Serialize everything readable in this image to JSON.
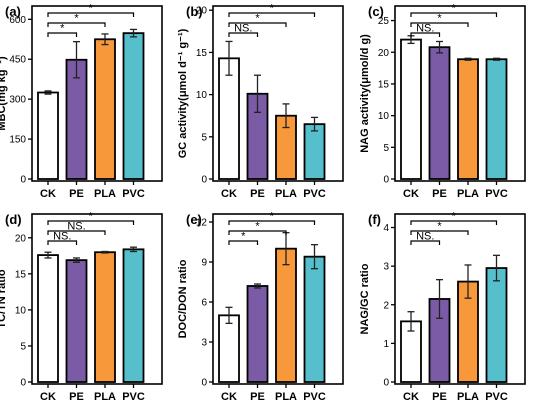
{
  "colors": {
    "CK": "#ffffff",
    "PE": "#7b5aa6",
    "PLA": "#f7983a",
    "PVC": "#55bfcc",
    "outline": "#000000"
  },
  "chart_data": [
    {
      "type": "bar",
      "panel": "(a)",
      "ylabel": "MBC(mg kg⁻¹)",
      "categories": [
        "CK",
        "PE",
        "PLA",
        "PVC"
      ],
      "values": [
        325,
        448,
        525,
        548
      ],
      "errors": [
        6,
        68,
        20,
        14
      ],
      "ylim": [
        0,
        650
      ],
      "yticks": [
        0,
        150,
        300,
        450,
        600
      ],
      "grid": false,
      "significance": [
        {
          "from": "CK",
          "to": "PE",
          "label": "*"
        },
        {
          "from": "CK",
          "to": "PLA",
          "label": "*"
        },
        {
          "from": "CK",
          "to": "PVC",
          "label": "*"
        }
      ]
    },
    {
      "type": "bar",
      "panel": "(b)",
      "ylabel": "GC activity(μmol d⁻¹ g⁻¹)",
      "categories": [
        "CK",
        "PE",
        "PLA",
        "PVC"
      ],
      "values": [
        14.3,
        10.1,
        7.5,
        6.5
      ],
      "errors": [
        2.0,
        2.2,
        1.4,
        0.8
      ],
      "ylim": [
        0,
        20.5
      ],
      "yticks": [
        0,
        5,
        10,
        15,
        20
      ],
      "grid": false,
      "significance": [
        {
          "from": "CK",
          "to": "PE",
          "label": "NS."
        },
        {
          "from": "CK",
          "to": "PLA",
          "label": "*"
        },
        {
          "from": "CK",
          "to": "PVC",
          "label": "*"
        }
      ]
    },
    {
      "type": "bar",
      "panel": "(c)",
      "ylabel": "NAG activity(μmol/d g)",
      "categories": [
        "CK",
        "PE",
        "PLA",
        "PVC"
      ],
      "values": [
        22.0,
        20.8,
        18.9,
        18.9
      ],
      "errors": [
        0.6,
        0.9,
        0.15,
        0.15
      ],
      "ylim": [
        0,
        27.3
      ],
      "yticks": [
        0,
        5,
        10,
        15,
        20,
        25
      ],
      "grid": false,
      "significance": [
        {
          "from": "CK",
          "to": "PE",
          "label": "NS."
        },
        {
          "from": "CK",
          "to": "PLA",
          "label": "*"
        },
        {
          "from": "CK",
          "to": "PVC",
          "label": "*"
        }
      ]
    },
    {
      "type": "bar",
      "panel": "(d)",
      "ylabel": "TC/TN ratio",
      "categories": [
        "CK",
        "PE",
        "PLA",
        "PVC"
      ],
      "values": [
        17.6,
        16.9,
        18.0,
        18.4
      ],
      "errors": [
        0.4,
        0.3,
        0.1,
        0.3
      ],
      "ylim": [
        0,
        23.3
      ],
      "yticks": [
        0,
        5,
        10,
        15,
        20
      ],
      "grid": false,
      "significance": [
        {
          "from": "CK",
          "to": "PE",
          "label": "NS."
        },
        {
          "from": "CK",
          "to": "PLA",
          "label": "NS."
        },
        {
          "from": "CK",
          "to": "PVC",
          "label": "*"
        }
      ]
    },
    {
      "type": "bar",
      "panel": "(e)",
      "ylabel": "DOC/DON ratio",
      "categories": [
        "CK",
        "PE",
        "PLA",
        "PVC"
      ],
      "values": [
        5.0,
        7.2,
        10.0,
        9.4
      ],
      "errors": [
        0.6,
        0.15,
        1.2,
        0.9
      ],
      "ylim": [
        0,
        12.6
      ],
      "yticks": [
        0,
        3,
        6,
        9,
        12
      ],
      "grid": false,
      "significance": [
        {
          "from": "CK",
          "to": "PE",
          "label": "*"
        },
        {
          "from": "CK",
          "to": "PLA",
          "label": "*"
        },
        {
          "from": "CK",
          "to": "PVC",
          "label": "*"
        }
      ]
    },
    {
      "type": "bar",
      "panel": "(f)",
      "ylabel": "NAG/GC ratio",
      "categories": [
        "CK",
        "PE",
        "PLA",
        "PVC"
      ],
      "values": [
        1.57,
        2.15,
        2.6,
        2.95
      ],
      "errors": [
        0.25,
        0.5,
        0.43,
        0.33
      ],
      "ylim": [
        0,
        4.35
      ],
      "yticks": [
        0,
        1,
        2,
        3,
        4
      ],
      "grid": false,
      "significance": [
        {
          "from": "CK",
          "to": "PE",
          "label": "NS."
        },
        {
          "from": "CK",
          "to": "PLA",
          "label": "*"
        },
        {
          "from": "CK",
          "to": "PVC",
          "label": "*"
        }
      ]
    }
  ]
}
